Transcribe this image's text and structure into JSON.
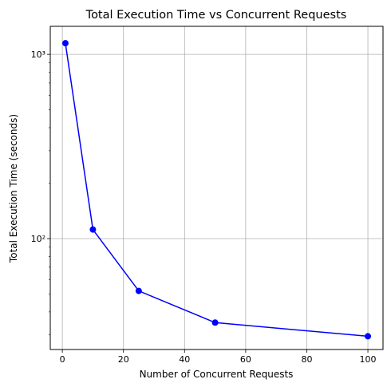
{
  "chart_data": {
    "type": "line",
    "title": "Total Execution Time vs Concurrent Requests",
    "xlabel": "Number of Concurrent Requests",
    "ylabel": "Total Execution Time (seconds)",
    "x": [
      1,
      10,
      25,
      50,
      100
    ],
    "series": [
      {
        "values": [
          1150,
          112,
          52,
          35,
          29.5
        ],
        "color": "#0000ff",
        "marker": "circle"
      }
    ],
    "xlim": [
      -3.95,
      104.95
    ],
    "ylim": [
      25,
      1420
    ],
    "yscale": "log",
    "xticks": [
      0,
      20,
      40,
      60,
      80,
      100
    ],
    "xtick_labels": [
      "0",
      "20",
      "40",
      "60",
      "80",
      "100"
    ],
    "yticks_major": [
      100,
      1000
    ],
    "ytick_labels": [
      "10²",
      "10³"
    ],
    "grid": true,
    "legend": "none"
  }
}
